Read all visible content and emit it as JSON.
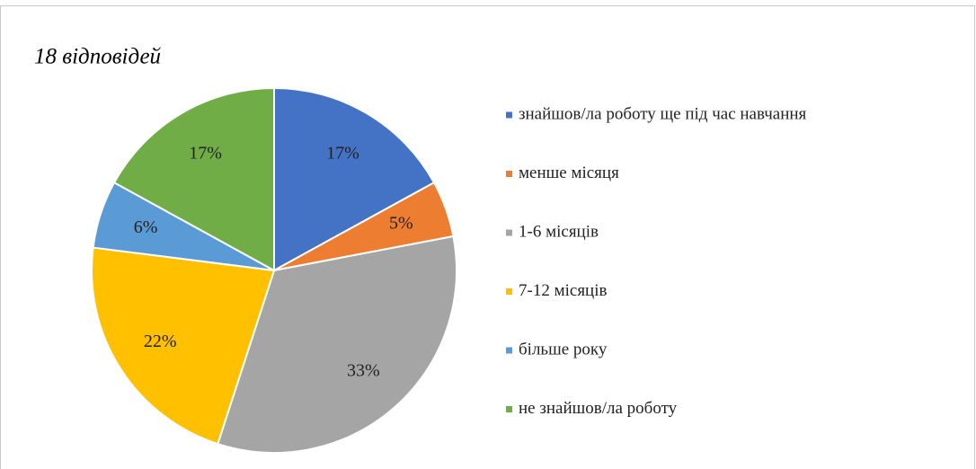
{
  "chart_data": {
    "type": "pie",
    "title": "18 відповідей",
    "categories": [
      "знайшов/ла роботу ще під час навчання",
      "менше місяця",
      "1-6 місяців",
      "7-12 місяців",
      "більше року",
      "не знайшов/ла роботу"
    ],
    "values": [
      17,
      5,
      33,
      22,
      6,
      17
    ],
    "value_labels": [
      "17%",
      "5%",
      "33%",
      "22%",
      "6%",
      "17%"
    ],
    "colors": [
      "#4472c4",
      "#ed7d31",
      "#a5a5a5",
      "#ffc000",
      "#5b9bd5",
      "#70ad47"
    ],
    "legend": "right"
  }
}
